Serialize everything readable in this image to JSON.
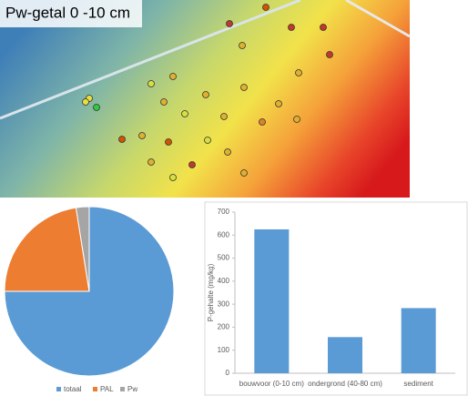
{
  "map": {
    "title": "Pw-getal 0 -10 cm"
  },
  "chart_data": [
    {
      "type": "pie",
      "categories": [
        "totaal",
        "PAL",
        "Pw"
      ],
      "values": [
        75,
        22.5,
        2.5
      ],
      "colors": [
        "#5b9bd5",
        "#ed7d31",
        "#a5a5a5"
      ],
      "legend": "bottom"
    },
    {
      "type": "bar",
      "ylabel": "P-gehalte (mg/kg)",
      "categories": [
        "bouwvoor (0-10 cm)",
        "ondergrond (40-80 cm)",
        "sediment"
      ],
      "values": [
        625,
        157,
        283
      ],
      "color": "#5b9bd5",
      "ylim": [
        0,
        700
      ],
      "yticks": [
        0,
        100,
        200,
        300,
        400,
        500,
        600,
        700
      ],
      "grid": false
    }
  ]
}
